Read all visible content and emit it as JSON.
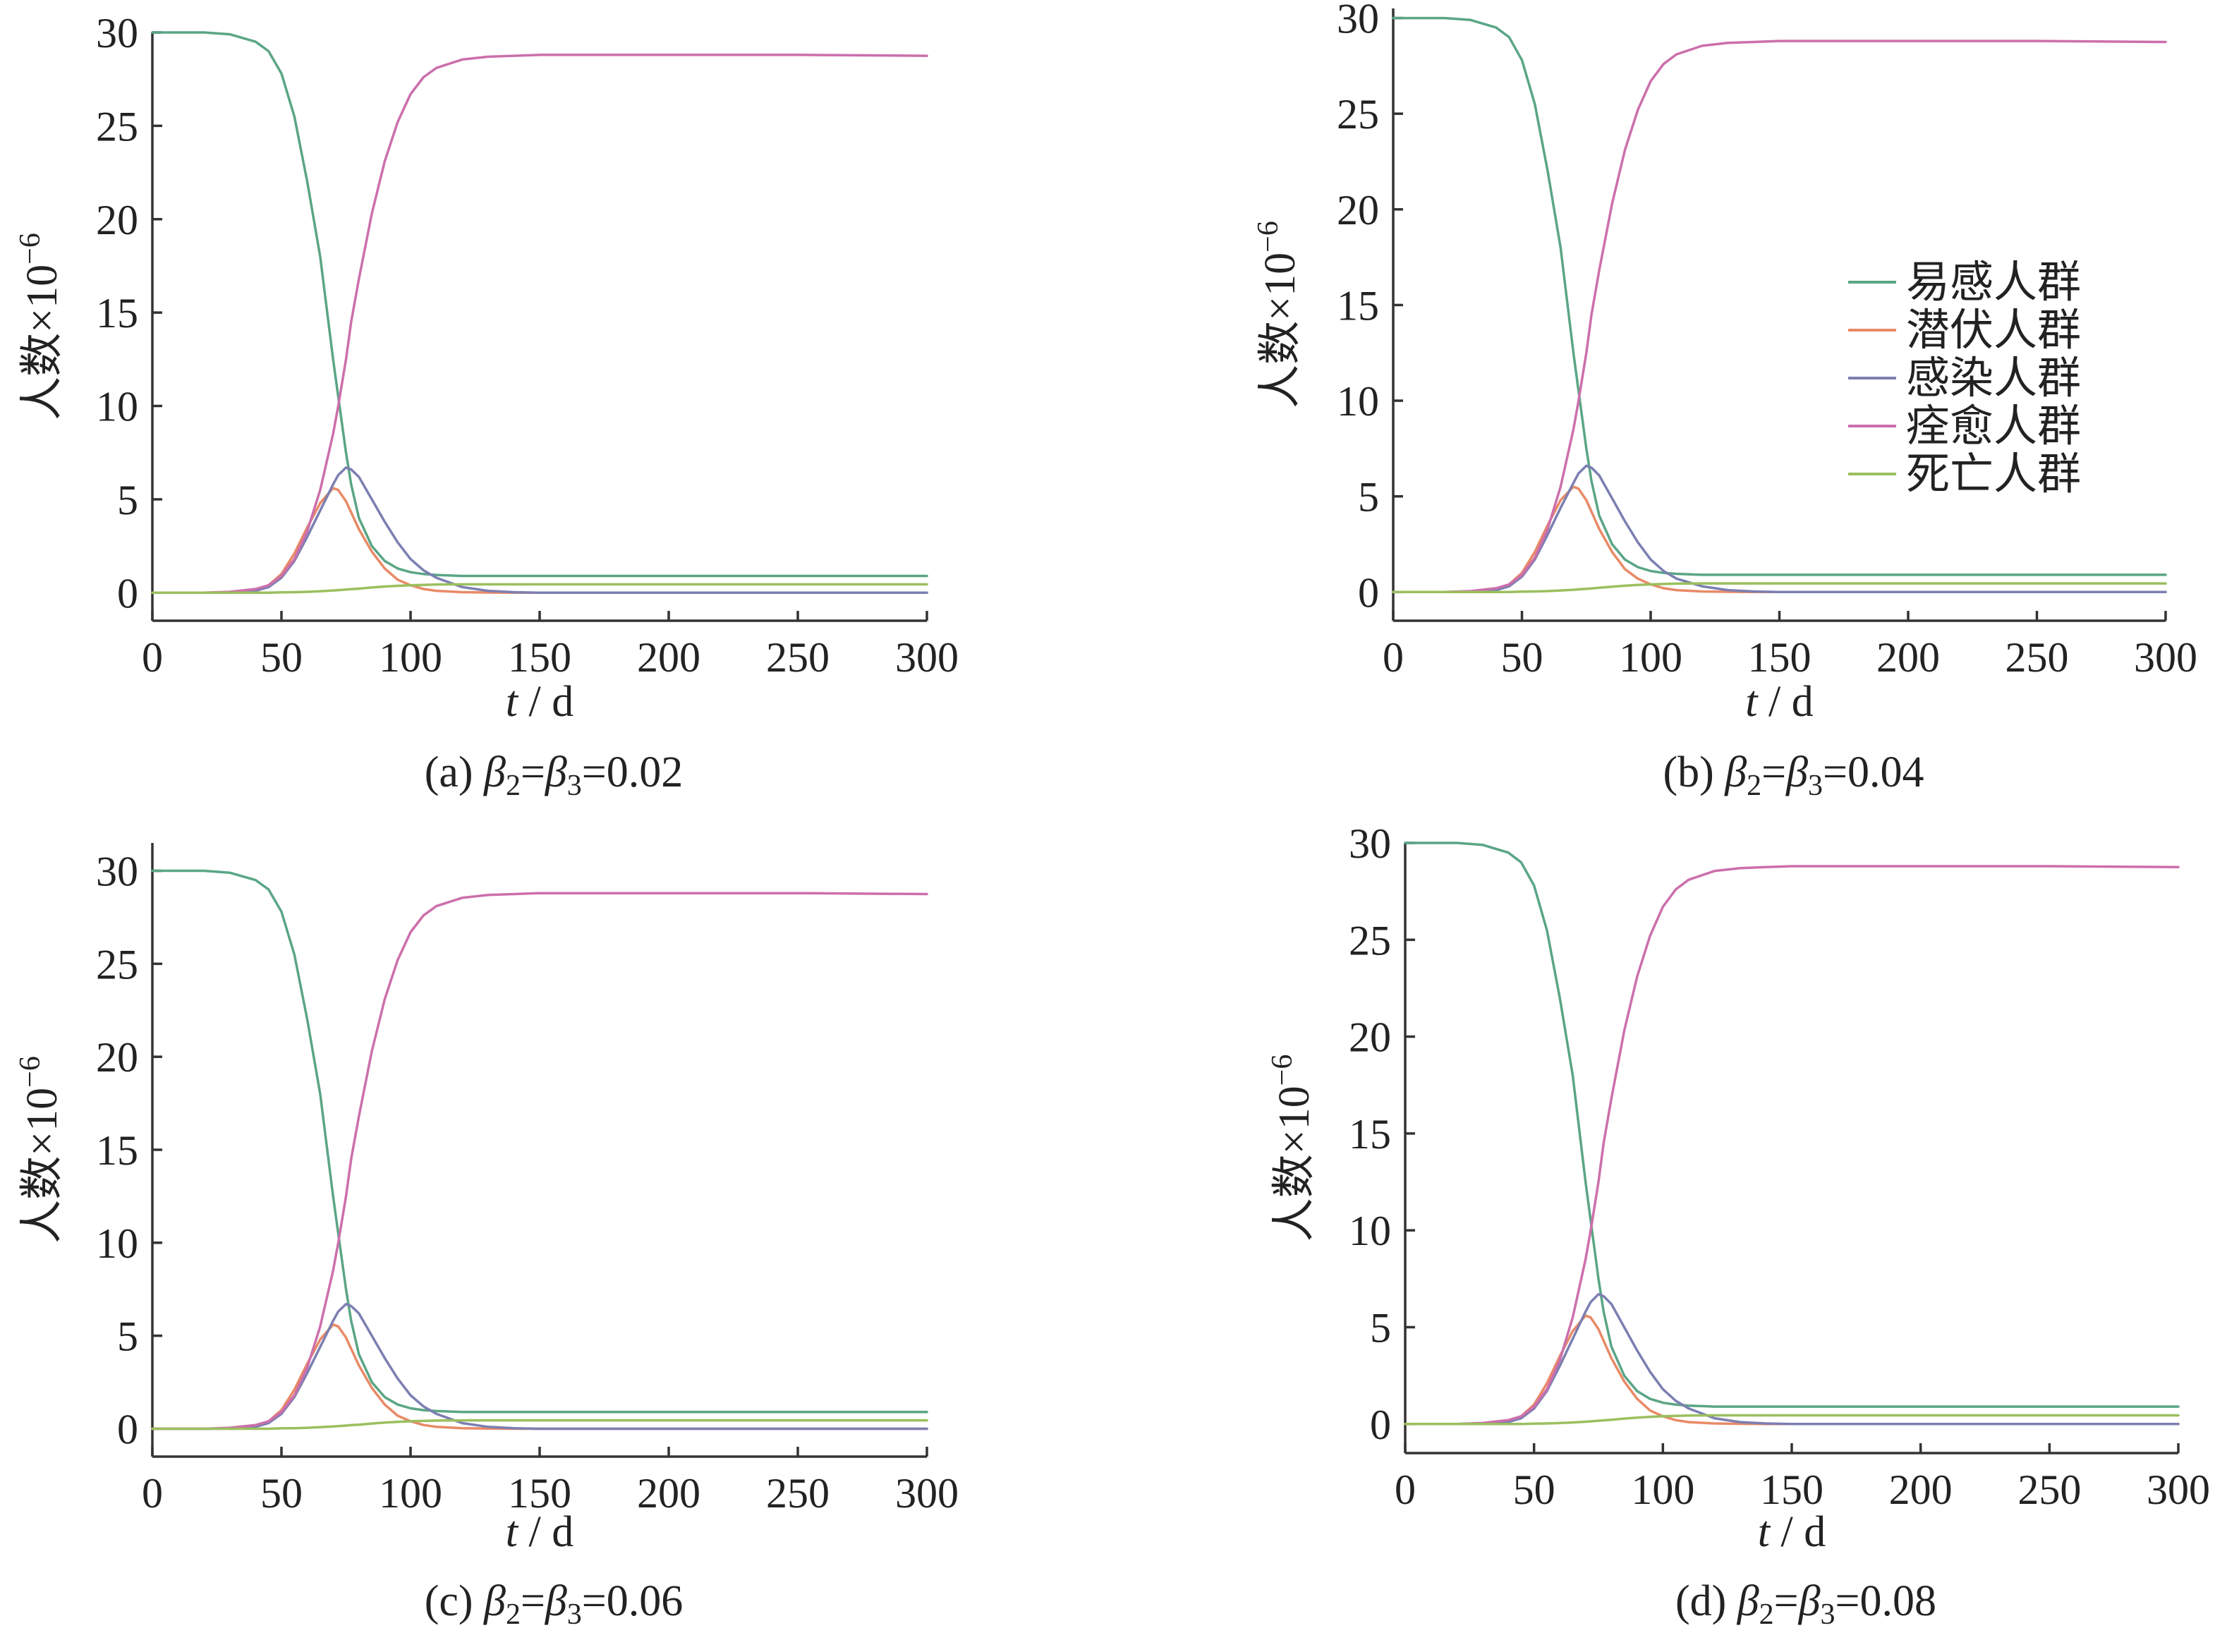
{
  "chart_data": [
    {
      "panel": "a",
      "type": "line",
      "caption_prefix": "(a)",
      "beta_value": "0.02",
      "xlabel_italic": "t",
      "xlabel_unit": " / d",
      "ylabel_main": "人数×10",
      "ylabel_exp": "−6",
      "xlim": [
        0,
        300
      ],
      "ylim": [
        -1.5,
        30
      ],
      "xticks": [
        0,
        50,
        100,
        150,
        200,
        250,
        300
      ],
      "yticks": [
        0,
        5,
        10,
        15,
        20,
        25,
        30
      ],
      "grid": false,
      "legend": false,
      "x": [
        0,
        10,
        20,
        30,
        40,
        45,
        50,
        55,
        60,
        65,
        70,
        72,
        75,
        77,
        80,
        85,
        90,
        95,
        100,
        105,
        110,
        120,
        130,
        140,
        150,
        175,
        200,
        250,
        300
      ],
      "series": [
        {
          "name": "易感人群",
          "color": "#5aa585",
          "values": [
            30.0,
            30.0,
            30.0,
            29.9,
            29.5,
            29.0,
            27.8,
            25.5,
            22.0,
            18.0,
            12.5,
            10.5,
            7.5,
            5.8,
            4.0,
            2.5,
            1.7,
            1.3,
            1.1,
            1.0,
            0.95,
            0.9,
            0.9,
            0.9,
            0.9,
            0.9,
            0.9,
            0.9,
            0.9
          ]
        },
        {
          "name": "潜伏人群",
          "color": "#e88a67",
          "values": [
            0.0,
            0.0,
            0.0,
            0.02,
            0.15,
            0.4,
            1.0,
            2.1,
            3.5,
            4.8,
            5.6,
            5.5,
            4.9,
            4.3,
            3.4,
            2.2,
            1.3,
            0.7,
            0.4,
            0.2,
            0.1,
            0.03,
            0.01,
            0.0,
            0.0,
            0.0,
            0.0,
            0.0,
            0.0
          ]
        },
        {
          "name": "感染人群",
          "color": "#7c7fb1",
          "values": [
            0.0,
            0.0,
            0.0,
            0.01,
            0.1,
            0.3,
            0.8,
            1.7,
            3.0,
            4.4,
            5.8,
            6.3,
            6.7,
            6.6,
            6.2,
            5.0,
            3.8,
            2.7,
            1.8,
            1.2,
            0.8,
            0.3,
            0.1,
            0.03,
            0.0,
            0.0,
            0.0,
            0.0,
            0.0
          ]
        },
        {
          "name": "痊愈人群",
          "color": "#cc6fac",
          "values": [
            0.0,
            0.0,
            0.0,
            0.05,
            0.2,
            0.4,
            0.9,
            1.8,
            3.3,
            5.5,
            8.5,
            10.0,
            12.5,
            14.5,
            16.8,
            20.3,
            23.1,
            25.2,
            26.7,
            27.6,
            28.1,
            28.55,
            28.7,
            28.75,
            28.8,
            28.8,
            28.8,
            28.8,
            28.75
          ]
        },
        {
          "name": "死亡人群",
          "color": "#9bbf5e",
          "values": [
            0.0,
            0.0,
            0.0,
            0.0,
            0.0,
            0.0,
            0.02,
            0.03,
            0.05,
            0.08,
            0.12,
            0.14,
            0.17,
            0.19,
            0.22,
            0.28,
            0.33,
            0.37,
            0.4,
            0.42,
            0.44,
            0.45,
            0.45,
            0.45,
            0.45,
            0.45,
            0.45,
            0.45,
            0.45
          ]
        }
      ]
    },
    {
      "panel": "b",
      "type": "line",
      "caption_prefix": "(b)",
      "beta_value": "0.04",
      "xlabel_italic": "t",
      "xlabel_unit": " / d",
      "ylabel_main": "人数×10",
      "ylabel_exp": "−6",
      "xlim": [
        0,
        300
      ],
      "ylim": [
        -1.5,
        30.5
      ],
      "xticks": [
        0,
        50,
        100,
        150,
        200,
        250,
        300
      ],
      "yticks": [
        0,
        5,
        10,
        15,
        20,
        25,
        30
      ],
      "grid": false,
      "legend": true,
      "legend_position": "center-right",
      "x": [
        0,
        10,
        20,
        30,
        40,
        45,
        50,
        55,
        60,
        65,
        70,
        72,
        75,
        77,
        80,
        85,
        90,
        95,
        100,
        105,
        110,
        120,
        130,
        140,
        150,
        175,
        200,
        250,
        300
      ],
      "series": [
        {
          "name": "易感人群",
          "color": "#5aa585",
          "values": [
            30.0,
            30.0,
            30.0,
            29.9,
            29.5,
            29.0,
            27.8,
            25.5,
            22.0,
            18.0,
            12.5,
            10.5,
            7.5,
            5.8,
            4.0,
            2.5,
            1.7,
            1.3,
            1.1,
            1.0,
            0.95,
            0.9,
            0.9,
            0.9,
            0.9,
            0.9,
            0.9,
            0.9,
            0.9
          ]
        },
        {
          "name": "潜伏人群",
          "color": "#e88a67",
          "values": [
            0.0,
            0.0,
            0.0,
            0.02,
            0.15,
            0.4,
            1.0,
            2.1,
            3.5,
            4.8,
            5.5,
            5.4,
            4.8,
            4.2,
            3.3,
            2.1,
            1.2,
            0.7,
            0.4,
            0.2,
            0.1,
            0.03,
            0.01,
            0.0,
            0.0,
            0.0,
            0.0,
            0.0,
            0.0
          ]
        },
        {
          "name": "感染人群",
          "color": "#7c7fb1",
          "values": [
            0.0,
            0.0,
            0.0,
            0.01,
            0.1,
            0.3,
            0.8,
            1.7,
            3.0,
            4.4,
            5.7,
            6.2,
            6.6,
            6.5,
            6.1,
            4.9,
            3.7,
            2.6,
            1.7,
            1.1,
            0.7,
            0.3,
            0.1,
            0.03,
            0.0,
            0.0,
            0.0,
            0.0,
            0.0
          ]
        },
        {
          "name": "痊愈人群",
          "color": "#cc6fac",
          "values": [
            0.0,
            0.0,
            0.0,
            0.05,
            0.2,
            0.4,
            0.9,
            1.8,
            3.3,
            5.5,
            8.5,
            10.0,
            12.5,
            14.5,
            16.8,
            20.3,
            23.1,
            25.2,
            26.7,
            27.6,
            28.1,
            28.55,
            28.7,
            28.75,
            28.8,
            28.8,
            28.8,
            28.8,
            28.75
          ]
        },
        {
          "name": "死亡人群",
          "color": "#9bbf5e",
          "values": [
            0.0,
            0.0,
            0.0,
            0.0,
            0.0,
            0.0,
            0.02,
            0.03,
            0.05,
            0.08,
            0.12,
            0.14,
            0.17,
            0.19,
            0.22,
            0.28,
            0.33,
            0.37,
            0.4,
            0.42,
            0.44,
            0.45,
            0.45,
            0.45,
            0.45,
            0.45,
            0.45,
            0.45,
            0.45
          ]
        }
      ]
    },
    {
      "panel": "c",
      "type": "line",
      "caption_prefix": "(c)",
      "beta_value": "0.06",
      "xlabel_italic": "t",
      "xlabel_unit": " / d",
      "ylabel_main": "人数×10",
      "ylabel_exp": "−6",
      "xlim": [
        0,
        300
      ],
      "ylim": [
        -1.5,
        31.5
      ],
      "xticks": [
        0,
        50,
        100,
        150,
        200,
        250,
        300
      ],
      "yticks": [
        0,
        5,
        10,
        15,
        20,
        25,
        30
      ],
      "grid": false,
      "legend": false,
      "x": [
        0,
        10,
        20,
        30,
        40,
        45,
        50,
        55,
        60,
        65,
        70,
        72,
        75,
        77,
        80,
        85,
        90,
        95,
        100,
        105,
        110,
        120,
        130,
        140,
        150,
        175,
        200,
        250,
        300
      ],
      "series": [
        {
          "name": "易感人群",
          "color": "#5aa585",
          "values": [
            30.0,
            30.0,
            30.0,
            29.9,
            29.5,
            29.0,
            27.8,
            25.5,
            22.0,
            18.0,
            12.5,
            10.5,
            7.5,
            5.8,
            4.0,
            2.5,
            1.7,
            1.3,
            1.1,
            1.0,
            0.95,
            0.9,
            0.9,
            0.9,
            0.9,
            0.9,
            0.9,
            0.9,
            0.9
          ]
        },
        {
          "name": "潜伏人群",
          "color": "#e88a67",
          "values": [
            0.0,
            0.0,
            0.0,
            0.02,
            0.15,
            0.4,
            1.0,
            2.1,
            3.5,
            4.8,
            5.6,
            5.5,
            4.9,
            4.3,
            3.4,
            2.2,
            1.3,
            0.7,
            0.4,
            0.2,
            0.1,
            0.03,
            0.01,
            0.0,
            0.0,
            0.0,
            0.0,
            0.0,
            0.0
          ]
        },
        {
          "name": "感染人群",
          "color": "#7c7fb1",
          "values": [
            0.0,
            0.0,
            0.0,
            0.01,
            0.1,
            0.3,
            0.8,
            1.7,
            3.0,
            4.4,
            5.8,
            6.3,
            6.7,
            6.6,
            6.2,
            5.0,
            3.8,
            2.7,
            1.8,
            1.2,
            0.8,
            0.3,
            0.1,
            0.03,
            0.0,
            0.0,
            0.0,
            0.0,
            0.0
          ]
        },
        {
          "name": "痊愈人群",
          "color": "#cc6fac",
          "values": [
            0.0,
            0.0,
            0.0,
            0.05,
            0.2,
            0.4,
            0.9,
            1.8,
            3.3,
            5.5,
            8.5,
            10.0,
            12.5,
            14.5,
            16.8,
            20.3,
            23.1,
            25.2,
            26.7,
            27.6,
            28.1,
            28.55,
            28.7,
            28.75,
            28.8,
            28.8,
            28.8,
            28.8,
            28.75
          ]
        },
        {
          "name": "死亡人群",
          "color": "#9bbf5e",
          "values": [
            0.0,
            0.0,
            0.0,
            0.0,
            0.0,
            0.0,
            0.02,
            0.03,
            0.05,
            0.08,
            0.12,
            0.14,
            0.17,
            0.19,
            0.22,
            0.28,
            0.33,
            0.37,
            0.4,
            0.42,
            0.44,
            0.45,
            0.45,
            0.45,
            0.45,
            0.45,
            0.45,
            0.45,
            0.45
          ]
        }
      ]
    },
    {
      "panel": "d",
      "type": "line",
      "caption_prefix": "(d)",
      "beta_value": "0.08",
      "xlabel_italic": "t",
      "xlabel_unit": " / d",
      "ylabel_main": "人数×10",
      "ylabel_exp": "−6",
      "xlim": [
        0,
        300
      ],
      "ylim": [
        -1.5,
        30
      ],
      "xticks": [
        0,
        50,
        100,
        150,
        200,
        250,
        300
      ],
      "yticks": [
        0,
        5,
        10,
        15,
        20,
        25,
        30
      ],
      "grid": false,
      "legend": false,
      "x": [
        0,
        10,
        20,
        30,
        40,
        45,
        50,
        55,
        60,
        65,
        70,
        72,
        75,
        77,
        80,
        85,
        90,
        95,
        100,
        105,
        110,
        120,
        130,
        140,
        150,
        175,
        200,
        250,
        300
      ],
      "series": [
        {
          "name": "易感人群",
          "color": "#5aa585",
          "values": [
            30.0,
            30.0,
            30.0,
            29.9,
            29.5,
            29.0,
            27.8,
            25.5,
            22.0,
            18.0,
            12.5,
            10.5,
            7.5,
            5.8,
            4.0,
            2.5,
            1.7,
            1.3,
            1.1,
            1.0,
            0.95,
            0.9,
            0.9,
            0.9,
            0.9,
            0.9,
            0.9,
            0.9,
            0.9
          ]
        },
        {
          "name": "潜伏人群",
          "color": "#e88a67",
          "values": [
            0.0,
            0.0,
            0.0,
            0.02,
            0.15,
            0.4,
            1.0,
            2.1,
            3.5,
            4.8,
            5.6,
            5.5,
            4.9,
            4.3,
            3.4,
            2.2,
            1.3,
            0.7,
            0.4,
            0.2,
            0.1,
            0.03,
            0.01,
            0.0,
            0.0,
            0.0,
            0.0,
            0.0,
            0.0
          ]
        },
        {
          "name": "感染人群",
          "color": "#7c7fb1",
          "values": [
            0.0,
            0.0,
            0.0,
            0.01,
            0.1,
            0.3,
            0.8,
            1.7,
            3.0,
            4.4,
            5.8,
            6.3,
            6.7,
            6.6,
            6.2,
            5.0,
            3.8,
            2.7,
            1.8,
            1.2,
            0.8,
            0.3,
            0.1,
            0.03,
            0.0,
            0.0,
            0.0,
            0.0,
            0.0
          ]
        },
        {
          "name": "痊愈人群",
          "color": "#cc6fac",
          "values": [
            0.0,
            0.0,
            0.0,
            0.05,
            0.2,
            0.4,
            0.9,
            1.8,
            3.3,
            5.5,
            8.5,
            10.0,
            12.5,
            14.5,
            16.8,
            20.3,
            23.1,
            25.2,
            26.7,
            27.6,
            28.1,
            28.55,
            28.7,
            28.75,
            28.8,
            28.8,
            28.8,
            28.8,
            28.75
          ]
        },
        {
          "name": "死亡人群",
          "color": "#9bbf5e",
          "values": [
            0.0,
            0.0,
            0.0,
            0.0,
            0.0,
            0.0,
            0.02,
            0.03,
            0.05,
            0.08,
            0.12,
            0.14,
            0.17,
            0.19,
            0.22,
            0.28,
            0.33,
            0.37,
            0.4,
            0.42,
            0.44,
            0.45,
            0.45,
            0.45,
            0.45,
            0.45,
            0.45,
            0.45,
            0.45
          ]
        }
      ]
    }
  ]
}
